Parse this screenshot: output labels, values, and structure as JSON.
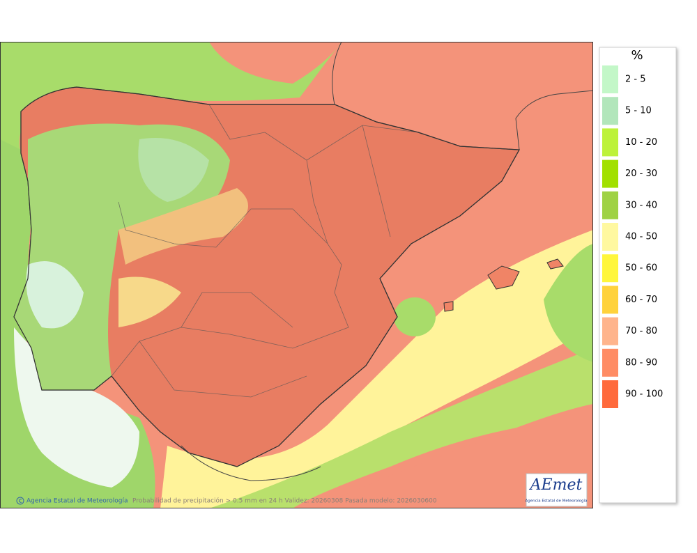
{
  "legend": {
    "title": "%",
    "entries": [
      {
        "label": "2 - 5",
        "color": "#c3f7c8"
      },
      {
        "label": "5 - 10",
        "color": "#b2e6bb"
      },
      {
        "label": "10 - 20",
        "color": "#bdf23a"
      },
      {
        "label": "20 - 30",
        "color": "#a2e000"
      },
      {
        "label": "30 - 40",
        "color": "#9fd244"
      },
      {
        "label": "40 - 50",
        "color": "#fff8a0"
      },
      {
        "label": "50 - 60",
        "color": "#fff63c"
      },
      {
        "label": "60 - 70",
        "color": "#ffd23c"
      },
      {
        "label": "70 - 80",
        "color": "#ffb48c"
      },
      {
        "label": "80 - 90",
        "color": "#ff8c64"
      },
      {
        "label": "90 - 100",
        "color": "#ff6a3c"
      }
    ]
  },
  "footer": {
    "credit": "Agencia Estatal de Meteorología",
    "caption": "Probabilidad de precipitación > 0.5 mm en 24 h Validez: 20260308 Pasada modelo: 2026030600"
  },
  "logo": {
    "name": "AEmet",
    "subtitle": "Agencia Estatal de Meteorología"
  }
}
